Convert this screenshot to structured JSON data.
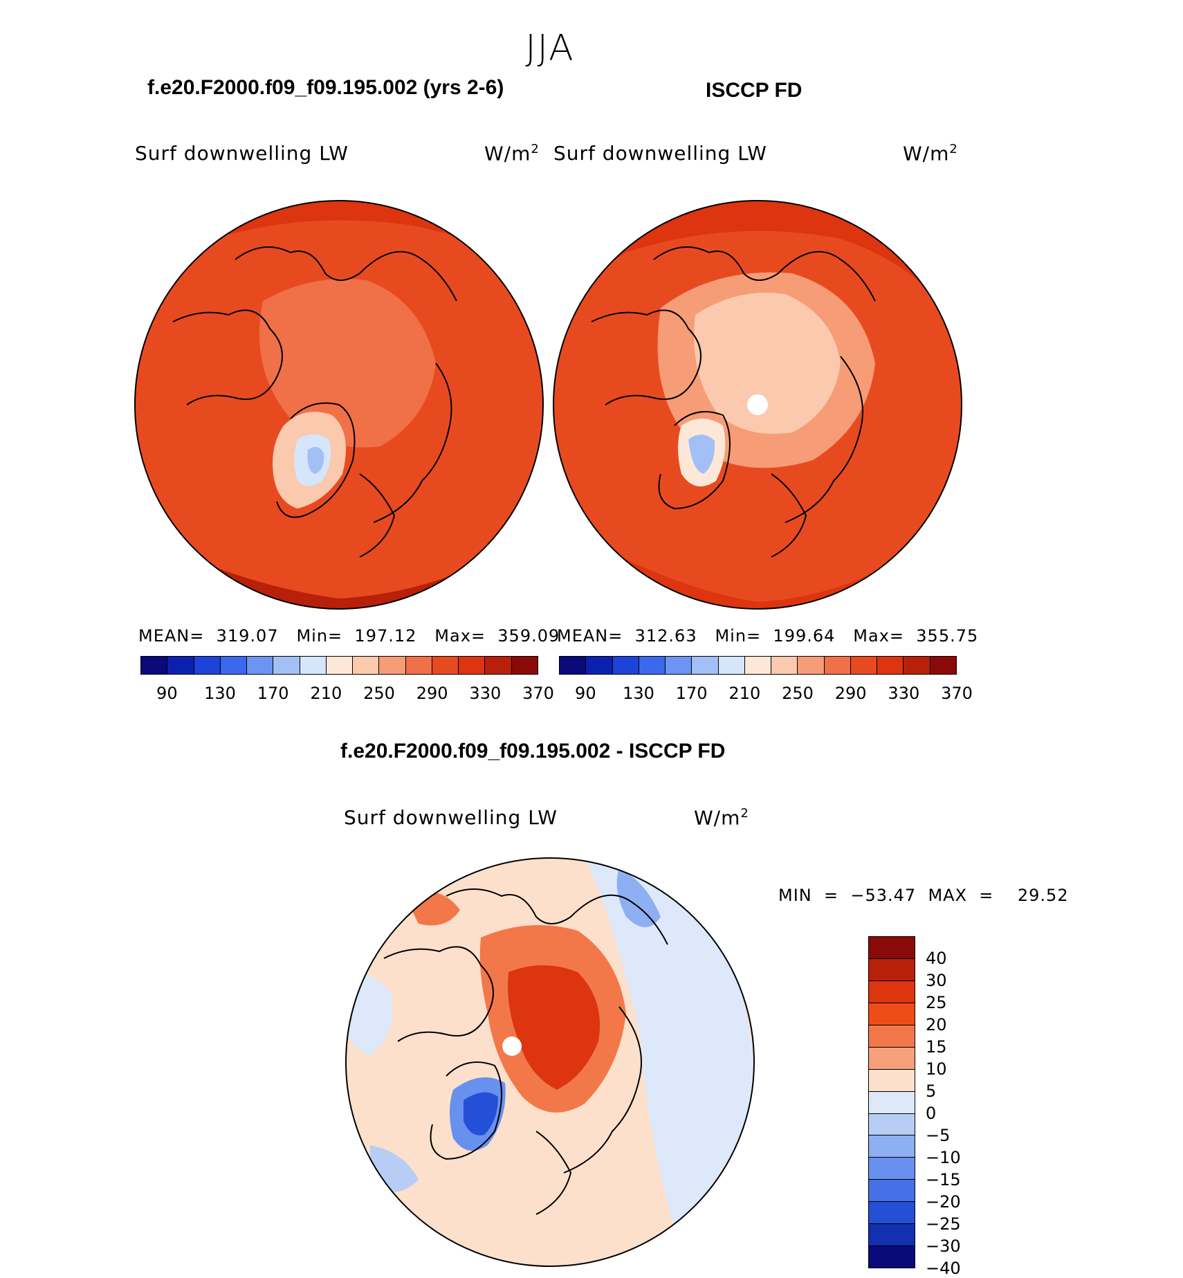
{
  "season": "JJA",
  "left_panel": {
    "title": "f.e20.F2000.f09_f09.195.002 (yrs 2-6)",
    "variable": "Surf  downwelling  LW",
    "units": "W/m",
    "units_exp": "2",
    "stats": "MEAN=  319.07   Min=  197.12   Max=  359.09"
  },
  "right_panel": {
    "title": "ISCCP FD",
    "variable": "Surf  downwelling  LW",
    "units": "W/m",
    "units_exp": "2",
    "stats": "MEAN=  312.63   Min=  199.64   Max=  355.75"
  },
  "diff_panel": {
    "title": "f.e20.F2000.f09_f09.195.002 - ISCCP FD",
    "variable": "Surf  downwelling  LW",
    "units": "W/m",
    "units_exp": "2",
    "stats": "MIN  =  −53.47  MAX  =    29.52"
  },
  "colorbar_abs": {
    "ticks": [
      "90",
      "130",
      "170",
      "210",
      "250",
      "290",
      "330",
      "370"
    ],
    "colors": [
      "#0a0a7a",
      "#0c20b0",
      "#1d43d8",
      "#3a68ee",
      "#6d94f2",
      "#a3c0f6",
      "#d5e6fb",
      "#fde8d8",
      "#fbc9ad",
      "#f69c77",
      "#f07048",
      "#e84a20",
      "#dc3510",
      "#b8200a",
      "#8a0a0a"
    ]
  },
  "colorbar_diff": {
    "ticks": [
      "40",
      "30",
      "25",
      "20",
      "15",
      "10",
      "5",
      "0",
      "−5",
      "−10",
      "−15",
      "−20",
      "−25",
      "−30",
      "−40"
    ],
    "colors": [
      "#8a0a0a",
      "#b8200a",
      "#dc3510",
      "#ee4d1a",
      "#f2784a",
      "#f6a07c",
      "#fce0cc",
      "#dde9fb",
      "#b7cdf6",
      "#8eaff2",
      "#6890ee",
      "#4570e6",
      "#2450d8",
      "#1230b0",
      "#0a0a7a"
    ]
  }
}
